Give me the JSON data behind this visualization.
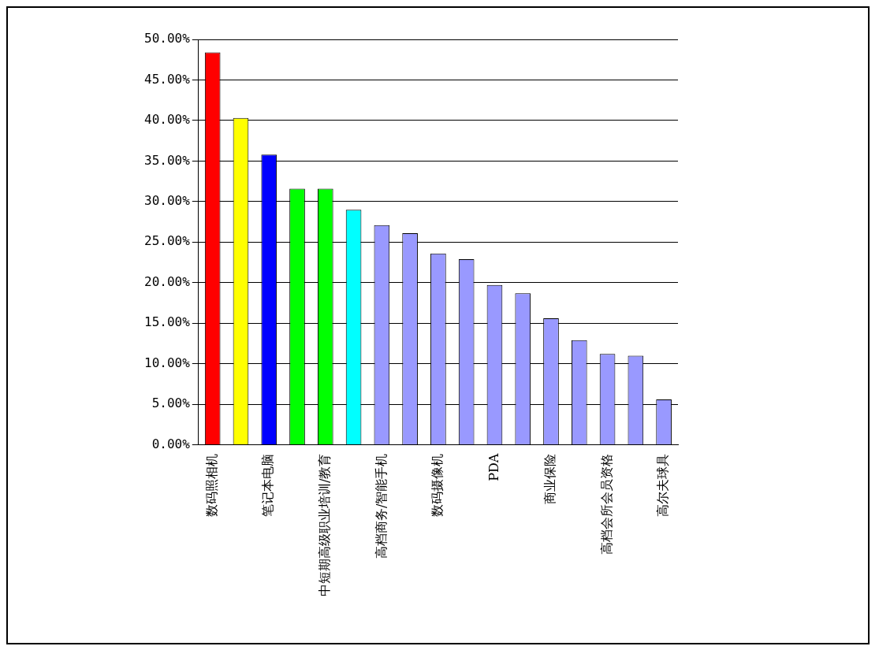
{
  "chart_data": {
    "type": "bar",
    "categories": [
      "数码照相机",
      null,
      "笔记本电脑",
      null,
      "中短期高级职业培训/教育",
      null,
      "高档商务/智能手机",
      null,
      "数码摄像机",
      null,
      "PDA",
      null,
      "商业保险",
      null,
      "高档会所会员资格",
      null,
      "高尔夫球具"
    ],
    "values": [
      48.4,
      40.3,
      35.8,
      31.6,
      31.6,
      29.0,
      27.1,
      26.1,
      23.6,
      22.9,
      19.7,
      18.7,
      15.6,
      12.9,
      11.2,
      11.0,
      5.6
    ],
    "colors": [
      "#ff0000",
      "#ffff00",
      "#0000ff",
      "#00ff00",
      "#00ff00",
      "#00ffff",
      "#9999ff",
      "#9999ff",
      "#9999ff",
      "#9999ff",
      "#9999ff",
      "#9999ff",
      "#9999ff",
      "#9999ff",
      "#9999ff",
      "#9999ff",
      "#9999ff"
    ],
    "ylim": [
      0,
      50
    ],
    "yticks": [
      {
        "value": 0,
        "label": "0.00%"
      },
      {
        "value": 5,
        "label": "5.00%"
      },
      {
        "value": 10,
        "label": "10.00%"
      },
      {
        "value": 15,
        "label": "15.00%"
      },
      {
        "value": 20,
        "label": "20.00%"
      },
      {
        "value": 25,
        "label": "25.00%"
      },
      {
        "value": 30,
        "label": "30.00%"
      },
      {
        "value": 35,
        "label": "35.00%"
      },
      {
        "value": 40,
        "label": "40.00%"
      },
      {
        "value": 45,
        "label": "45.00%"
      },
      {
        "value": 50,
        "label": "50.00%"
      }
    ],
    "grid": "y",
    "legend": false
  }
}
